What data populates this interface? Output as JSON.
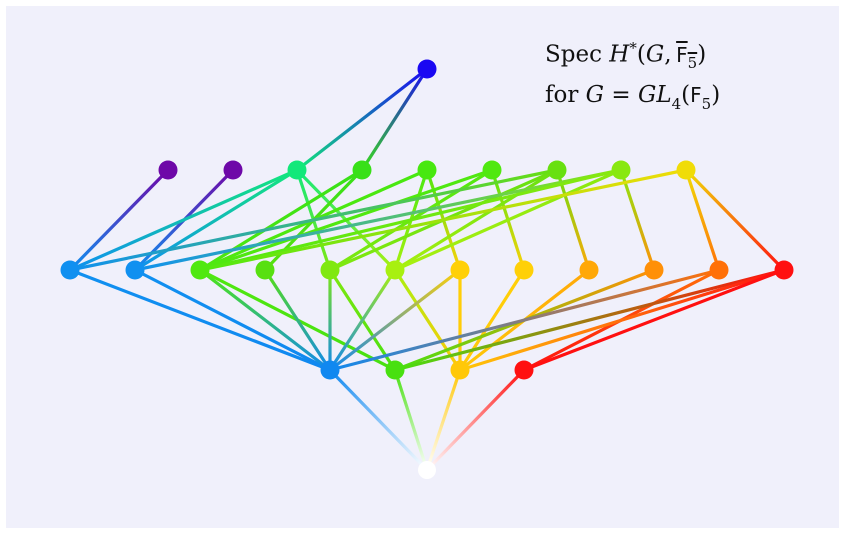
{
  "caption": {
    "line1": {
      "prefix": "Spec",
      "func": "H",
      "star": "*",
      "args_open": "(",
      "group": "G",
      "comma": ",",
      "field": "F",
      "field_sub": "5",
      "args_close": ")"
    },
    "line2": {
      "prefix": "for",
      "group": "G",
      "eq": "=",
      "gl": "GL",
      "gl_sub": "4",
      "args_open": "(",
      "field": "F",
      "field_sub": "5",
      "args_close": ")"
    }
  },
  "colors": {
    "background": "#f0f0fb",
    "top": "#0b00f0",
    "bottom": "#ffffff"
  },
  "nodes": [
    {
      "id": "top",
      "color": "#1a08f2"
    },
    {
      "id": "a1",
      "color": "#6e08a8"
    },
    {
      "id": "a2",
      "color": "#6e08a8"
    },
    {
      "id": "a3",
      "color": "#12e87a"
    },
    {
      "id": "a4",
      "color": "#38e018"
    },
    {
      "id": "a5",
      "color": "#48e810"
    },
    {
      "id": "a6",
      "color": "#50e810"
    },
    {
      "id": "a7",
      "color": "#68e010"
    },
    {
      "id": "a8",
      "color": "#88e810"
    },
    {
      "id": "a9",
      "color": "#f0dc08"
    },
    {
      "id": "b1",
      "color": "#1090f0"
    },
    {
      "id": "b2",
      "color": "#1090f0"
    },
    {
      "id": "b3",
      "color": "#50e810"
    },
    {
      "id": "b4",
      "color": "#58e010"
    },
    {
      "id": "b5",
      "color": "#80e810"
    },
    {
      "id": "b6",
      "color": "#a8f010"
    },
    {
      "id": "b7",
      "color": "#ffd008"
    },
    {
      "id": "b8",
      "color": "#ffd008"
    },
    {
      "id": "b9",
      "color": "#ffa808"
    },
    {
      "id": "b10",
      "color": "#ff9008"
    },
    {
      "id": "b11",
      "color": "#ff7008"
    },
    {
      "id": "b12",
      "color": "#ff1010"
    },
    {
      "id": "c1",
      "color": "#1088f0"
    },
    {
      "id": "c2",
      "color": "#48e010"
    },
    {
      "id": "c3",
      "color": "#ffc808"
    },
    {
      "id": "c4",
      "color": "#ff1010"
    },
    {
      "id": "bottom",
      "color": "#ffffff"
    }
  ],
  "edges": [
    [
      "top",
      "a3"
    ],
    [
      "top",
      "a4"
    ],
    [
      "a1",
      "b1"
    ],
    [
      "a2",
      "b2"
    ],
    [
      "a3",
      "b1"
    ],
    [
      "a3",
      "b2"
    ],
    [
      "a3",
      "b5"
    ],
    [
      "a3",
      "b6"
    ],
    [
      "a4",
      "b3"
    ],
    [
      "a4",
      "b4"
    ],
    [
      "a5",
      "b3"
    ],
    [
      "a5",
      "b6"
    ],
    [
      "a5",
      "b7"
    ],
    [
      "a6",
      "b3"
    ],
    [
      "a6",
      "b5"
    ],
    [
      "a6",
      "b8"
    ],
    [
      "a7",
      "b1"
    ],
    [
      "a7",
      "b5"
    ],
    [
      "a7",
      "b6"
    ],
    [
      "a7",
      "b9"
    ],
    [
      "a8",
      "b2"
    ],
    [
      "a8",
      "b3"
    ],
    [
      "a8",
      "b6"
    ],
    [
      "a8",
      "b10"
    ],
    [
      "a9",
      "b3"
    ],
    [
      "a9",
      "b11"
    ],
    [
      "a9",
      "b12"
    ],
    [
      "b1",
      "c1"
    ],
    [
      "b2",
      "c1"
    ],
    [
      "b3",
      "c1"
    ],
    [
      "b3",
      "c2"
    ],
    [
      "b4",
      "c1"
    ],
    [
      "b5",
      "c1"
    ],
    [
      "b5",
      "c2"
    ],
    [
      "b6",
      "c1"
    ],
    [
      "b6",
      "c3"
    ],
    [
      "b7",
      "c1"
    ],
    [
      "b7",
      "c3"
    ],
    [
      "b8",
      "c3"
    ],
    [
      "b9",
      "c3"
    ],
    [
      "b10",
      "c2"
    ],
    [
      "b11",
      "c1"
    ],
    [
      "b11",
      "c4"
    ],
    [
      "b12",
      "c2"
    ],
    [
      "b12",
      "c3"
    ],
    [
      "b12",
      "c4"
    ],
    [
      "c1",
      "bottom"
    ],
    [
      "c2",
      "bottom"
    ],
    [
      "c3",
      "bottom"
    ],
    [
      "c4",
      "bottom"
    ]
  ]
}
